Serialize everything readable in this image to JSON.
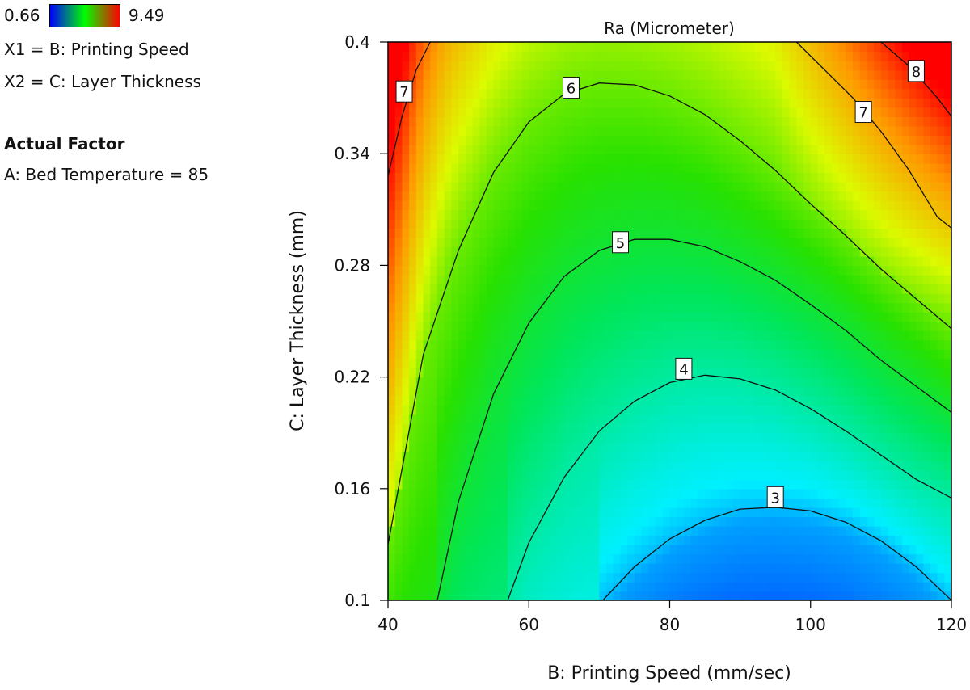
{
  "legend": {
    "min_label": "0.66",
    "max_label": "9.49",
    "x1": "X1 = B: Printing Speed",
    "x2": "X2 = C: Layer Thickness",
    "actual_factor_heading": "Actual Factor",
    "actual_factor_value": "A: Bed Temperature = 85",
    "gradient_colors": [
      "#0000ff",
      "#00ff00",
      "#ff0000"
    ]
  },
  "chart_data": {
    "type": "heatmap",
    "subtype": "contour",
    "title": "Ra (Micrometer)",
    "xlabel": "B: Printing Speed (mm/sec)",
    "ylabel": "C: Layer Thickness (mm)",
    "xlim": [
      40,
      120
    ],
    "ylim": [
      0.1,
      0.4
    ],
    "x_ticks": [
      40,
      60,
      80,
      100,
      120
    ],
    "y_ticks": [
      0.1,
      0.16,
      0.22,
      0.28,
      0.34,
      0.4
    ],
    "y_tick_labels": [
      "0.1",
      "0.16",
      "0.22",
      "0.28",
      "0.34",
      "0.4"
    ],
    "color_range": [
      0.66,
      9.49
    ],
    "contour_levels": [
      3,
      4,
      5,
      6,
      7,
      8
    ],
    "contours": [
      {
        "level": 3,
        "label": "3",
        "label_at": [
          95,
          0.155
        ],
        "points": [
          [
            70.5,
            0.1
          ],
          [
            75,
            0.118
          ],
          [
            80,
            0.133
          ],
          [
            85,
            0.143
          ],
          [
            90,
            0.149
          ],
          [
            95,
            0.15
          ],
          [
            100,
            0.148
          ],
          [
            105,
            0.142
          ],
          [
            110,
            0.132
          ],
          [
            115,
            0.118
          ],
          [
            120,
            0.1
          ]
        ]
      },
      {
        "level": 4,
        "label": "4",
        "label_at": [
          82,
          0.224
        ],
        "points": [
          [
            57,
            0.1
          ],
          [
            60,
            0.131
          ],
          [
            65,
            0.166
          ],
          [
            70,
            0.191
          ],
          [
            75,
            0.207
          ],
          [
            80,
            0.217
          ],
          [
            85,
            0.221
          ],
          [
            90,
            0.219
          ],
          [
            95,
            0.213
          ],
          [
            100,
            0.203
          ],
          [
            105,
            0.191
          ],
          [
            110,
            0.178
          ],
          [
            115,
            0.165
          ],
          [
            120,
            0.155
          ]
        ]
      },
      {
        "level": 5,
        "label": "5",
        "label_at": [
          73,
          0.292
        ],
        "points": [
          [
            47,
            0.1
          ],
          [
            50,
            0.153
          ],
          [
            55,
            0.211
          ],
          [
            60,
            0.249
          ],
          [
            65,
            0.274
          ],
          [
            70,
            0.288
          ],
          [
            75,
            0.294
          ],
          [
            80,
            0.294
          ],
          [
            85,
            0.29
          ],
          [
            90,
            0.282
          ],
          [
            95,
            0.272
          ],
          [
            100,
            0.259
          ],
          [
            105,
            0.245
          ],
          [
            110,
            0.229
          ],
          [
            115,
            0.215
          ],
          [
            120,
            0.201
          ]
        ]
      },
      {
        "level": 6,
        "label": "6",
        "label_at": [
          66,
          0.375
        ],
        "points": [
          [
            40,
            0.13
          ],
          [
            45,
            0.232
          ],
          [
            50,
            0.288
          ],
          [
            55,
            0.33
          ],
          [
            60,
            0.357
          ],
          [
            65,
            0.372
          ],
          [
            70,
            0.378
          ],
          [
            75,
            0.377
          ],
          [
            80,
            0.371
          ],
          [
            85,
            0.361
          ],
          [
            90,
            0.347
          ],
          [
            95,
            0.331
          ],
          [
            100,
            0.313
          ],
          [
            105,
            0.296
          ],
          [
            110,
            0.278
          ],
          [
            115,
            0.262
          ],
          [
            120,
            0.246
          ]
        ]
      },
      {
        "level": 7,
        "label": "7",
        "label_at": [
          42.3,
          0.373
        ],
        "points": [
          [
            40,
            0.328
          ],
          [
            42,
            0.36
          ],
          [
            44,
            0.385
          ],
          [
            46,
            0.4
          ]
        ]
      },
      {
        "level": 7,
        "label": "7",
        "label_at": [
          107.5,
          0.362
        ],
        "points": [
          [
            98,
            0.4
          ],
          [
            102,
            0.385
          ],
          [
            106,
            0.37
          ],
          [
            110,
            0.352
          ],
          [
            114,
            0.331
          ],
          [
            118,
            0.306
          ],
          [
            120,
            0.3
          ]
        ]
      },
      {
        "level": 8,
        "label": "8",
        "label_at": [
          115,
          0.384
        ],
        "points": [
          [
            110,
            0.4
          ],
          [
            114,
            0.387
          ],
          [
            118,
            0.37
          ],
          [
            120,
            0.36
          ]
        ]
      }
    ],
    "grid": false,
    "legend": "top-left"
  }
}
